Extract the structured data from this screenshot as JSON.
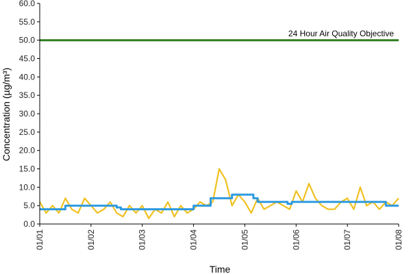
{
  "chart_data": {
    "type": "line",
    "title": "",
    "xlabel": "Time",
    "ylabel": "Concentration (µg/m³)",
    "ylim": [
      0,
      60
    ],
    "yticks": [
      "0.0",
      "5.0",
      "10.0",
      "15.0",
      "20.0",
      "25.0",
      "30.0",
      "35.0",
      "40.0",
      "45.0",
      "50.0",
      "55.0",
      "60.0"
    ],
    "xticks": [
      "01/01",
      "01/02",
      "01/03",
      "01/04",
      "01/05",
      "01/06",
      "01/07",
      "01/08"
    ],
    "xlim": [
      "01/01 00:00",
      "01/08 00:00"
    ],
    "grid": false,
    "legend": "none",
    "annotation": "24 Hour Air Quality Objective",
    "colors": {
      "hourly": "#f0c020",
      "running_mean": "#2e9ae0",
      "objective": "#2e7d1e",
      "axis": "#000000"
    },
    "series": [
      {
        "color": "#2e7d1e",
        "x": [
          "01/01 00:00",
          "01/08 00:00"
        ],
        "y": [
          50,
          50
        ]
      },
      {
        "color": "#2e9ae0",
        "x": [
          "01/01 00:00",
          "01/01 12:00",
          "01/01 12:00",
          "01/02 12:00",
          "01/02 12:00",
          "01/02 14:00",
          "01/02 14:00",
          "01/03 00:00",
          "01/03 00:00",
          "01/03 06:00",
          "01/03 06:00",
          "01/04 00:00",
          "01/04 00:00",
          "01/04 08:00",
          "01/04 08:00",
          "01/04 18:00",
          "01/04 18:00",
          "01/05 04:00",
          "01/05 04:00",
          "01/05 06:00",
          "01/05 06:00",
          "01/05 20:00",
          "01/05 20:00",
          "01/05 22:00",
          "01/05 22:00",
          "01/06 00:00",
          "01/06 00:00",
          "01/07 18:00",
          "01/07 18:00",
          "01/07 21:00",
          "01/07 21:00",
          "01/08 00:00"
        ],
        "y": [
          4,
          4,
          5,
          5,
          4.5,
          4.5,
          4,
          4,
          4,
          4,
          4,
          4,
          5,
          5,
          7,
          7,
          8,
          8,
          7,
          7,
          6,
          6,
          5.5,
          5.5,
          6,
          6,
          6,
          6,
          5,
          5,
          5,
          5
        ]
      },
      {
        "color": "#f0c020",
        "x": [
          "01/01 00:00",
          "01/01 03:00",
          "01/01 06:00",
          "01/01 09:00",
          "01/01 12:00",
          "01/01 15:00",
          "01/01 18:00",
          "01/01 21:00",
          "01/02 00:00",
          "01/02 03:00",
          "01/02 06:00",
          "01/02 09:00",
          "01/02 12:00",
          "01/02 15:00",
          "01/02 18:00",
          "01/02 21:00",
          "01/03 00:00",
          "01/03 03:00",
          "01/03 06:00",
          "01/03 09:00",
          "01/03 12:00",
          "01/03 15:00",
          "01/03 18:00",
          "01/03 21:00",
          "01/04 00:00",
          "01/04 03:00",
          "01/04 06:00",
          "01/04 09:00",
          "01/04 12:00",
          "01/04 15:00",
          "01/04 18:00",
          "01/04 21:00",
          "01/05 00:00",
          "01/05 03:00",
          "01/05 06:00",
          "01/05 09:00",
          "01/05 12:00",
          "01/05 15:00",
          "01/05 18:00",
          "01/05 21:00",
          "01/06 00:00",
          "01/06 03:00",
          "01/06 06:00",
          "01/06 09:00",
          "01/06 12:00",
          "01/06 15:00",
          "01/06 18:00",
          "01/06 21:00",
          "01/07 00:00",
          "01/07 03:00",
          "01/07 06:00",
          "01/07 09:00",
          "01/07 12:00",
          "01/07 15:00",
          "01/07 18:00",
          "01/07 21:00",
          "01/08 00:00"
        ],
        "y": [
          6,
          3,
          5,
          3,
          7,
          4,
          3,
          7,
          5,
          3,
          4,
          6,
          3,
          2,
          5,
          3,
          5,
          1.5,
          4,
          3,
          6,
          2,
          5,
          3,
          4,
          6,
          5,
          6,
          15,
          12,
          5,
          8,
          6,
          3,
          7,
          4,
          5,
          6,
          5,
          4,
          9,
          6,
          11,
          7,
          5,
          4,
          4,
          6,
          7,
          4,
          10,
          5,
          6,
          4,
          6,
          5,
          7
        ]
      }
    ]
  }
}
